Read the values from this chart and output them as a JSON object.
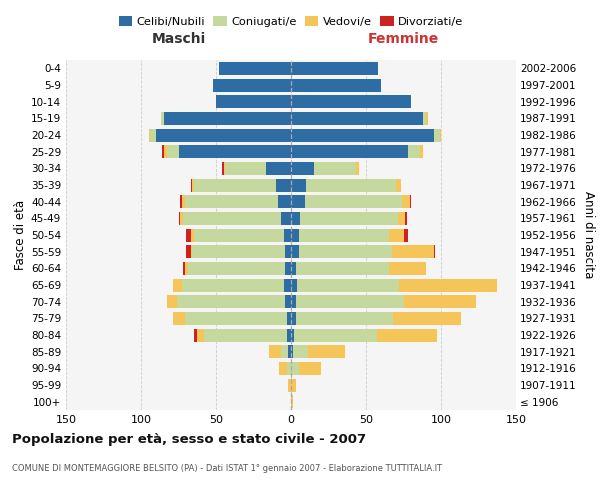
{
  "age_groups": [
    "100+",
    "95-99",
    "90-94",
    "85-89",
    "80-84",
    "75-79",
    "70-74",
    "65-69",
    "60-64",
    "55-59",
    "50-54",
    "45-49",
    "40-44",
    "35-39",
    "30-34",
    "25-29",
    "20-24",
    "15-19",
    "10-14",
    "5-9",
    "0-4"
  ],
  "birth_years": [
    "≤ 1906",
    "1907-1911",
    "1912-1916",
    "1917-1921",
    "1922-1926",
    "1927-1931",
    "1932-1936",
    "1937-1941",
    "1942-1946",
    "1947-1951",
    "1952-1956",
    "1957-1961",
    "1962-1966",
    "1967-1971",
    "1972-1976",
    "1977-1981",
    "1982-1986",
    "1987-1991",
    "1992-1996",
    "1997-2001",
    "2002-2006"
  ],
  "males_celibi": [
    0,
    0,
    0,
    2,
    3,
    3,
    4,
    5,
    4,
    4,
    5,
    7,
    9,
    10,
    17,
    75,
    90,
    85,
    50,
    52,
    48
  ],
  "males_coniugati": [
    0,
    0,
    3,
    5,
    55,
    68,
    72,
    68,
    65,
    62,
    60,
    65,
    62,
    55,
    27,
    8,
    4,
    2,
    0,
    0,
    0
  ],
  "males_vedovi": [
    0,
    2,
    5,
    8,
    5,
    8,
    7,
    6,
    2,
    1,
    2,
    2,
    2,
    1,
    1,
    2,
    1,
    0,
    0,
    0,
    0
  ],
  "males_divorziati": [
    0,
    0,
    0,
    0,
    2,
    0,
    0,
    0,
    1,
    3,
    3,
    1,
    1,
    1,
    1,
    1,
    0,
    0,
    0,
    0,
    0
  ],
  "females_nubili": [
    0,
    0,
    0,
    1,
    2,
    3,
    3,
    4,
    3,
    5,
    5,
    6,
    9,
    10,
    15,
    78,
    95,
    88,
    80,
    60,
    58
  ],
  "females_coniugate": [
    0,
    0,
    5,
    10,
    55,
    65,
    72,
    68,
    62,
    62,
    60,
    65,
    65,
    60,
    28,
    8,
    4,
    2,
    0,
    0,
    0
  ],
  "females_vedove": [
    1,
    3,
    15,
    25,
    40,
    45,
    48,
    65,
    25,
    28,
    10,
    5,
    5,
    3,
    2,
    2,
    1,
    1,
    0,
    0,
    0
  ],
  "females_divorziate": [
    0,
    0,
    0,
    0,
    0,
    0,
    0,
    0,
    0,
    1,
    3,
    1,
    1,
    0,
    0,
    0,
    0,
    0,
    0,
    0,
    0
  ],
  "color_celibi": "#2E6DA4",
  "color_coniugati": "#C5D89D",
  "color_vedovi": "#F5C55A",
  "color_divorziati": "#CC2222",
  "title": "Popolazione per età, sesso e stato civile - 2007",
  "subtitle": "COMUNE DI MONTEMAGGIORE BELSITO (PA) - Dati ISTAT 1° gennaio 2007 - Elaborazione TUTTITALIA.IT",
  "label_maschi": "Maschi",
  "label_femmine": "Femmine",
  "ylabel_left": "Fasce di età",
  "ylabel_right": "Anni di nascita",
  "legend_labels": [
    "Celibi/Nubili",
    "Coniugati/e",
    "Vedovi/e",
    "Divorziati/e"
  ],
  "xlim": 150,
  "bg_color": "#f5f5f5",
  "grid_color": "#cccccc"
}
